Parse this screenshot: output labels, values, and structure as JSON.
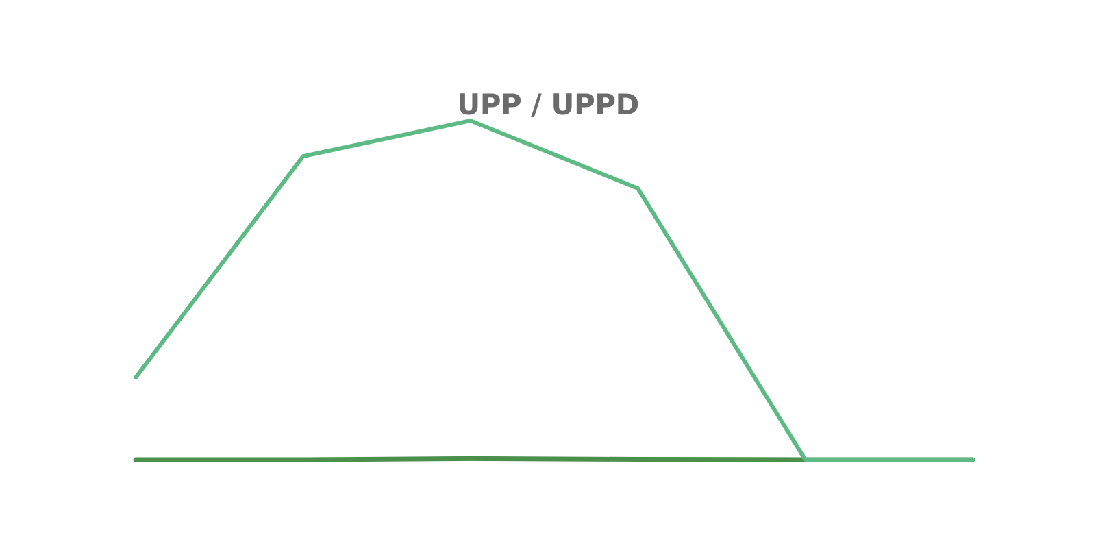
{
  "chart_data": {
    "type": "line",
    "title": "UPP / UPPD",
    "xlabel": "",
    "ylabel": "",
    "grid": false,
    "x": [
      0,
      1,
      2,
      3,
      4,
      5
    ],
    "ylim": [
      0,
      100
    ],
    "series": [
      {
        "name": "",
        "color": "#5dba84",
        "values": [
          23,
          85,
          95,
          76,
          0,
          0
        ]
      },
      {
        "name": "",
        "color": "#4a8f4a",
        "values": [
          0,
          0,
          0.3,
          0.1,
          0,
          0
        ]
      }
    ]
  }
}
